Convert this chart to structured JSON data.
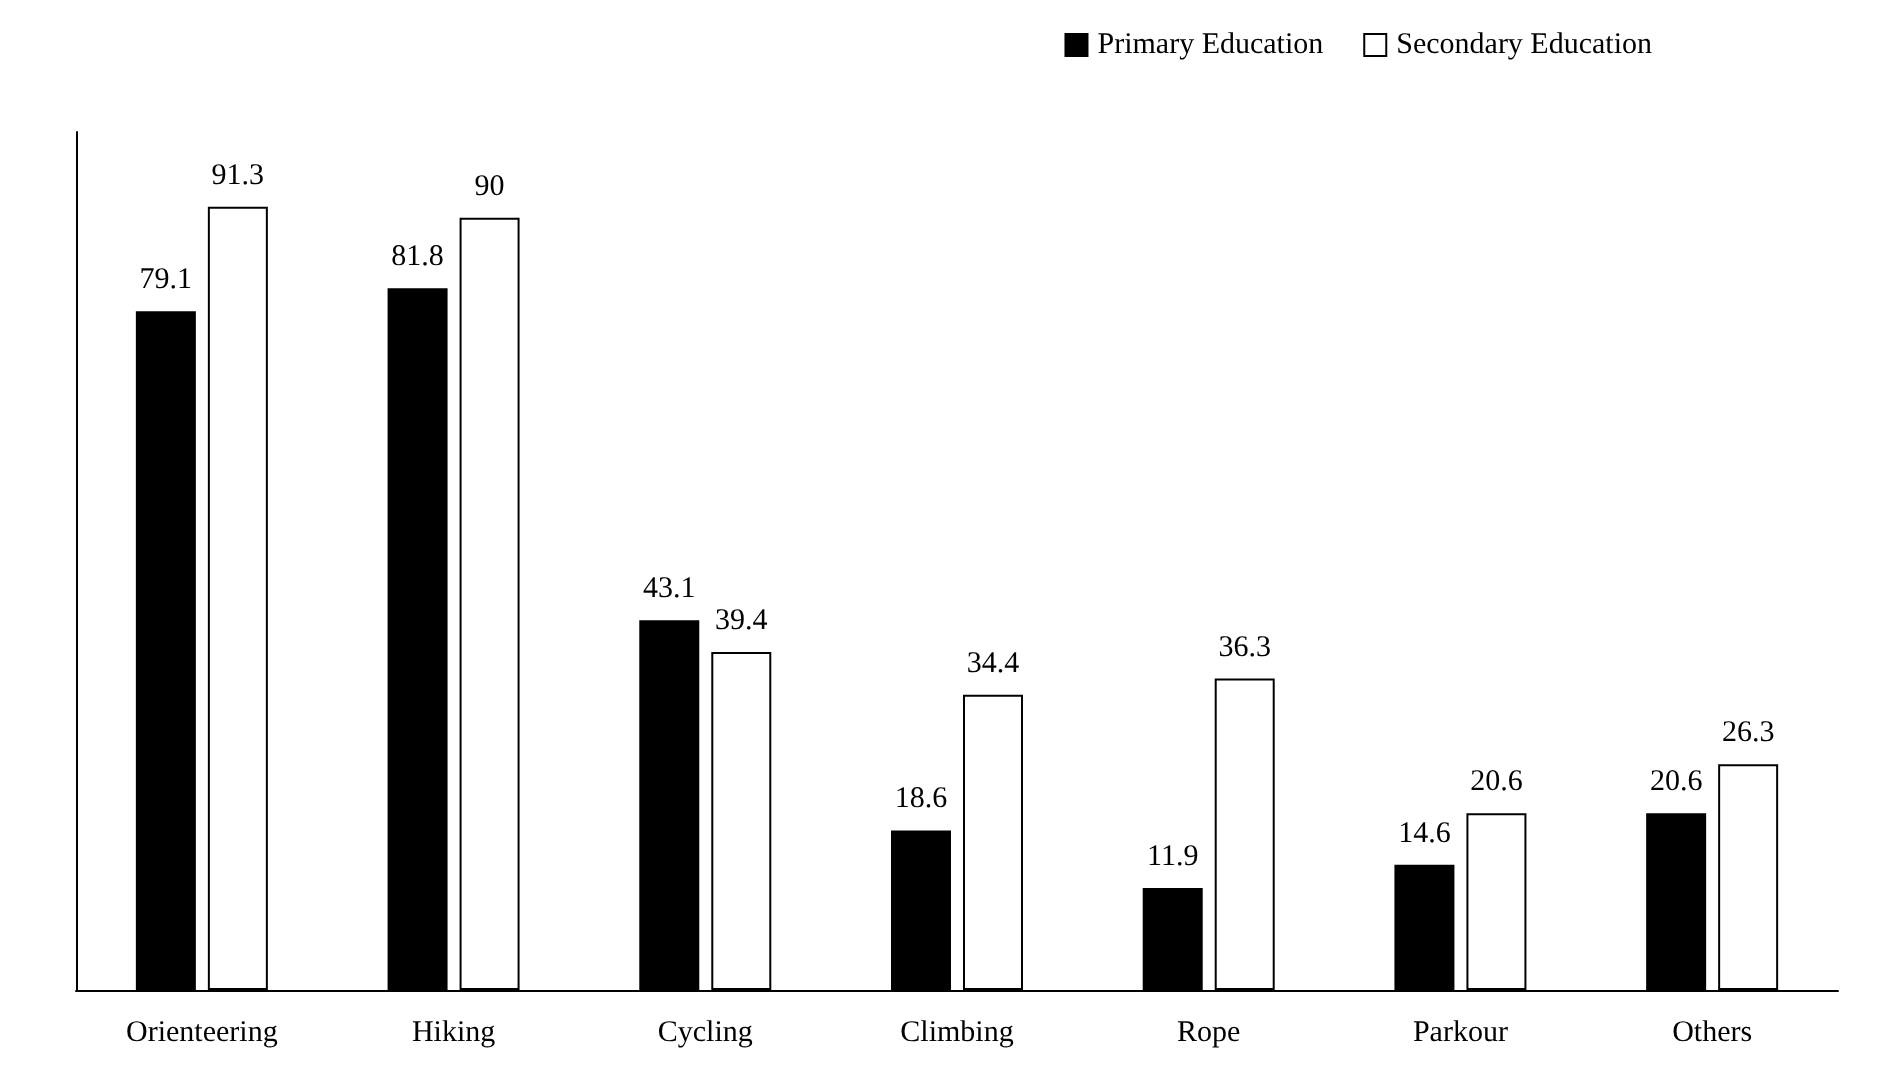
{
  "chart_data": {
    "type": "bar",
    "categories": [
      "Orienteering",
      "Hiking",
      "Cycling",
      "Climbing",
      "Rope",
      "Parkour",
      "Others"
    ],
    "series": [
      {
        "name": "Primary Education",
        "color": "#000000",
        "values": [
          79.1,
          81.8,
          43.1,
          18.6,
          11.9,
          14.6,
          20.6
        ]
      },
      {
        "name": "Secondary Education",
        "color": "#ffffff",
        "values": [
          91.3,
          90,
          39.4,
          34.4,
          36.3,
          20.6,
          26.3
        ]
      }
    ],
    "data_labels": true,
    "legend": "top right",
    "grid": false
  }
}
